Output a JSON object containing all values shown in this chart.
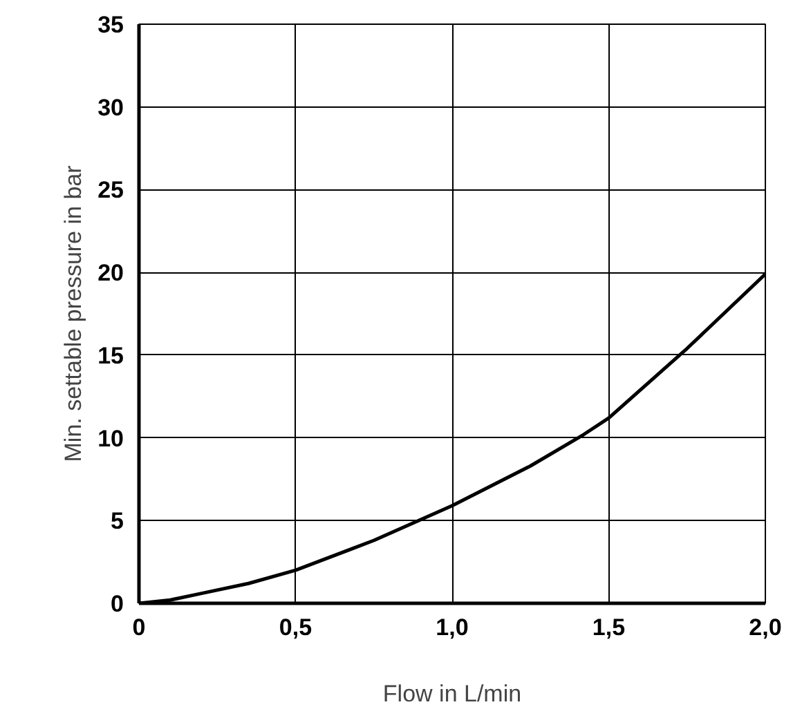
{
  "chart_data": {
    "type": "line",
    "xlabel": "Flow in L/min",
    "ylabel": "Min. settable pressure in bar",
    "x": [
      0,
      0.1,
      0.2,
      0.35,
      0.5,
      0.75,
      1.0,
      1.25,
      1.42,
      1.5,
      1.75,
      2.0
    ],
    "series": [
      {
        "color": "#000000",
        "values": [
          0,
          0.2,
          0.6,
          1.2,
          2,
          3.8,
          5.9,
          8.3,
          10.2,
          11.2,
          15.4,
          19.9
        ]
      }
    ],
    "xlim": [
      0,
      2
    ],
    "ylim": [
      0,
      35
    ],
    "xticks": [
      0,
      {
        "value": 0.5,
        "label": "0,5"
      },
      {
        "value": 1.0,
        "label": "1,0"
      },
      {
        "value": 1.5,
        "label": "1,5"
      },
      {
        "value": 2.0,
        "label": "2,0"
      }
    ],
    "yticks": [
      0,
      5,
      10,
      15,
      20,
      25,
      30,
      35
    ],
    "grid": true,
    "marker": "none",
    "line_style": "solid"
  }
}
